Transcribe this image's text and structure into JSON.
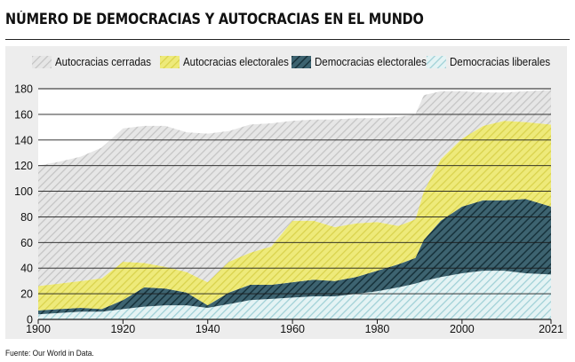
{
  "chart_data": {
    "type": "area",
    "stacked": true,
    "title": "NÚMERO DE DEMOCRACIAS Y AUTOCRACIAS EN EL MUNDO",
    "xlabel": "",
    "ylabel": "",
    "xlim": [
      1900,
      2021
    ],
    "ylim": [
      0,
      180
    ],
    "yticks": [
      "0",
      "20",
      "40",
      "60",
      "80",
      "100",
      "120",
      "140",
      "160",
      "180"
    ],
    "xticks": [
      "1900",
      "1920",
      "1940",
      "1960",
      "1980",
      "2000",
      "2021"
    ],
    "legend_position": "top",
    "x": [
      1900,
      1905,
      1910,
      1915,
      1920,
      1925,
      1930,
      1935,
      1940,
      1945,
      1950,
      1955,
      1960,
      1965,
      1970,
      1975,
      1980,
      1985,
      1989,
      1991,
      1995,
      2000,
      2005,
      2010,
      2015,
      2021
    ],
    "series": [
      {
        "name": "Democracias liberales",
        "color": "#bfe3e6",
        "values": [
          4,
          5,
          6,
          6,
          8,
          10,
          11,
          11,
          9,
          12,
          15,
          16,
          17,
          18,
          18,
          20,
          22,
          25,
          28,
          30,
          33,
          36,
          38,
          38,
          36,
          35
        ]
      },
      {
        "name": "Democracias electorales",
        "color": "#1f3f4a",
        "values": [
          3,
          3,
          3,
          2,
          7,
          15,
          13,
          10,
          2,
          9,
          12,
          11,
          12,
          13,
          12,
          13,
          16,
          18,
          20,
          32,
          44,
          52,
          55,
          55,
          58,
          53
        ]
      },
      {
        "name": "Autocracias electorales",
        "color": "#e8e36a",
        "values": [
          19,
          20,
          21,
          24,
          30,
          19,
          17,
          16,
          18,
          24,
          25,
          30,
          48,
          46,
          42,
          42,
          38,
          30,
          30,
          38,
          48,
          53,
          58,
          62,
          60,
          64
        ]
      },
      {
        "name": "Autocracias cerradas",
        "color": "#dcdcdc",
        "values": [
          94,
          95,
          97,
          102,
          104,
          107,
          110,
          109,
          116,
          102,
          100,
          96,
          78,
          79,
          84,
          82,
          81,
          85,
          82,
          75,
          53,
          37,
          26,
          22,
          24,
          27
        ]
      }
    ]
  },
  "legend": {
    "items": [
      "Autocracias cerradas",
      "Autocracias electorales",
      "Democracias electorales",
      "Democracias liberales"
    ]
  },
  "source": "Fuente: Our World in Data."
}
